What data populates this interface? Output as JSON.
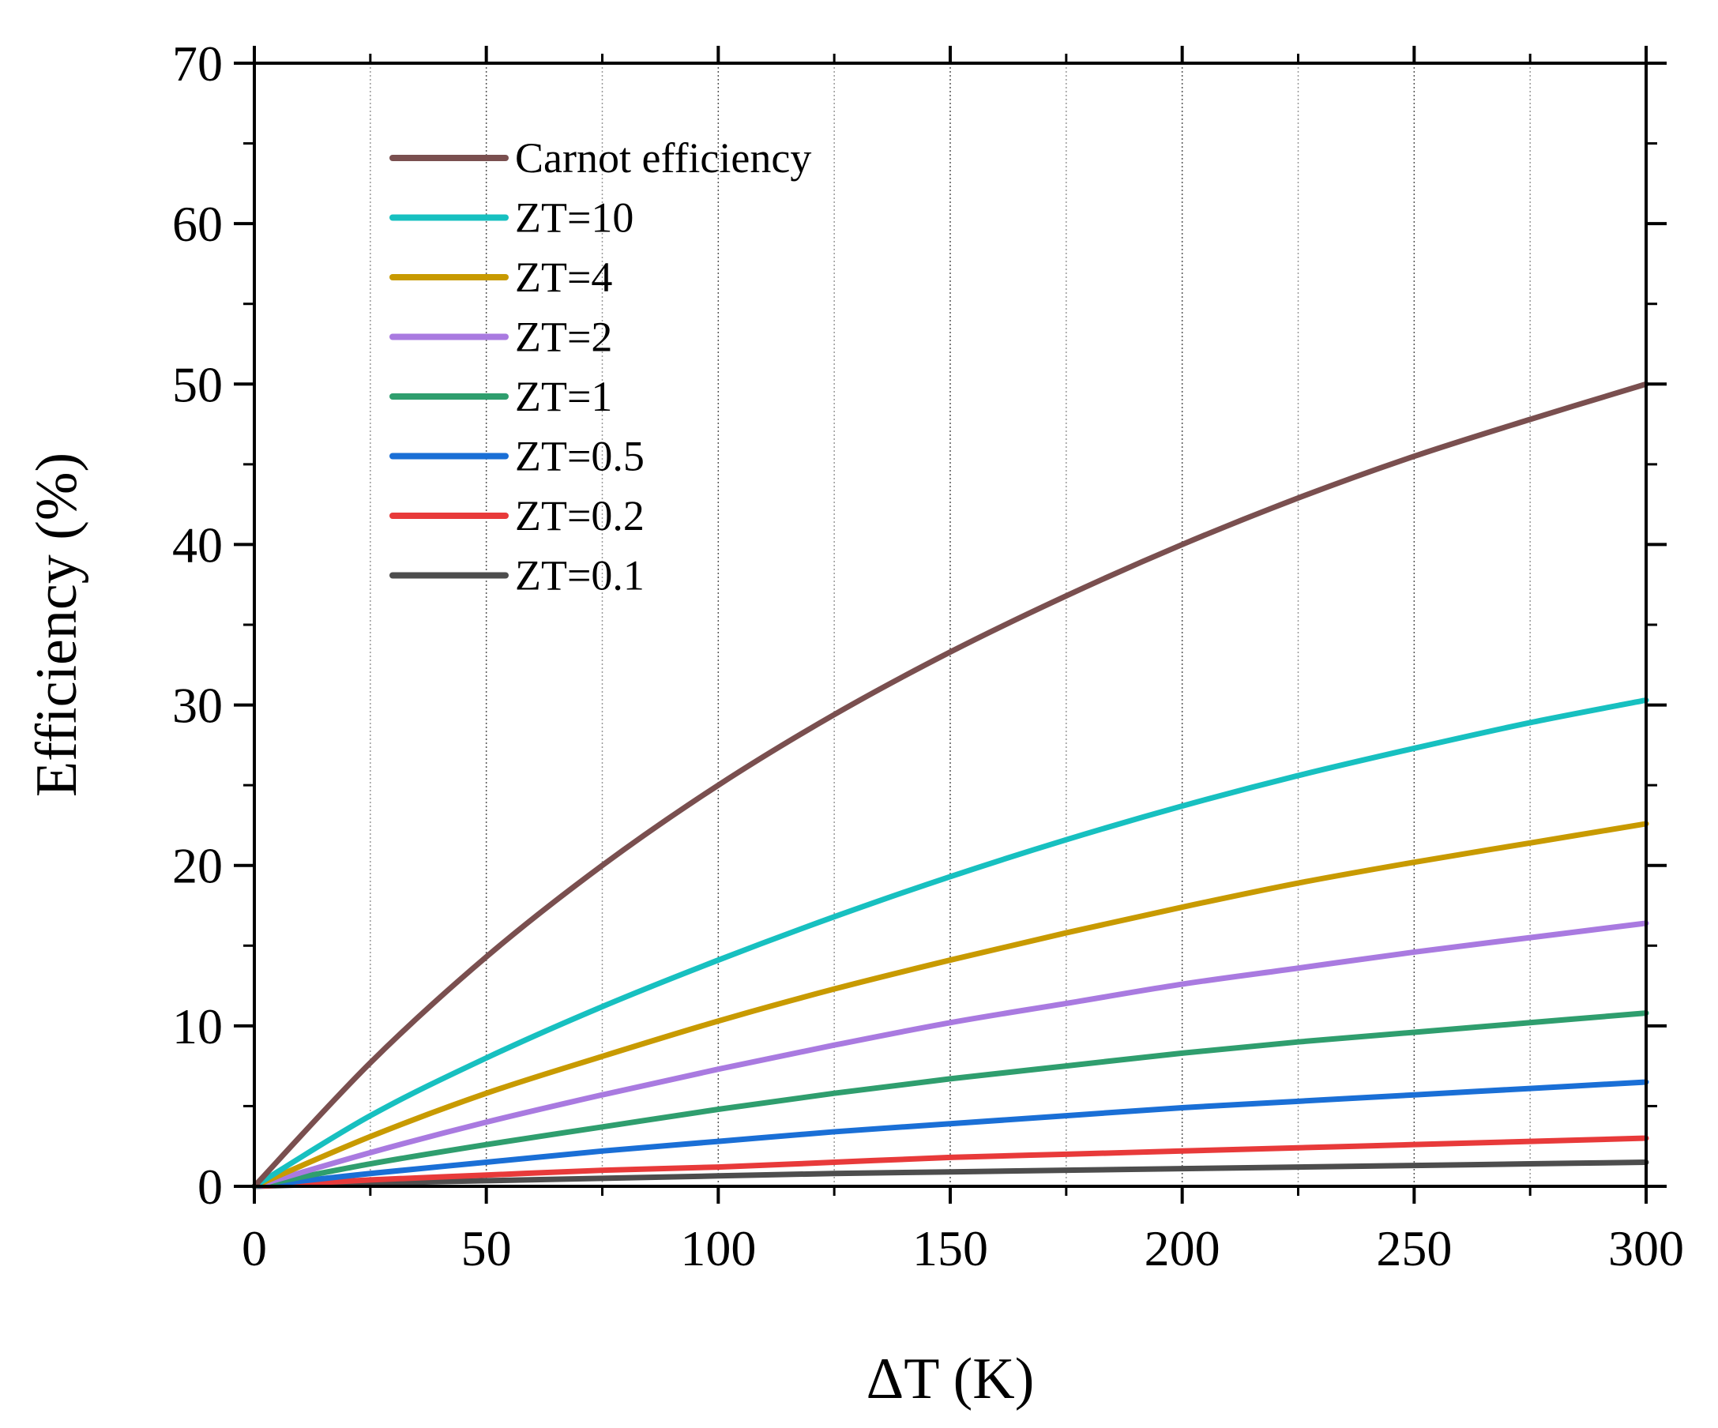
{
  "chart_data": {
    "type": "line",
    "title": "",
    "xlabel": "ΔT (K)",
    "ylabel": "Efficiency (%)",
    "xlim": [
      0,
      300
    ],
    "ylim": [
      0,
      70
    ],
    "xticks": [
      "0",
      "50",
      "100",
      "150",
      "200",
      "250",
      "300"
    ],
    "yticks": [
      "0",
      "10",
      "20",
      "30",
      "40",
      "50",
      "60",
      "70"
    ],
    "grid": "vertical dotted",
    "legend_position": "top-left",
    "x": [
      0,
      25,
      50,
      75,
      100,
      125,
      150,
      175,
      200,
      225,
      250,
      275,
      300
    ],
    "series": [
      {
        "name": "Carnot efficiency",
        "color": "#7a4f4f",
        "values": [
          0,
          7.7,
          14.3,
          20.0,
          25.0,
          29.4,
          33.3,
          36.8,
          40.0,
          42.9,
          45.5,
          47.8,
          50.0
        ]
      },
      {
        "name": "ZT=10",
        "color": "#17c0c0",
        "values": [
          0,
          4.4,
          8.0,
          11.2,
          14.1,
          16.8,
          19.3,
          21.6,
          23.7,
          25.6,
          27.3,
          28.9,
          30.3
        ]
      },
      {
        "name": "ZT=4",
        "color": "#c89a00",
        "values": [
          0,
          3.1,
          5.8,
          8.1,
          10.3,
          12.3,
          14.1,
          15.8,
          17.4,
          18.9,
          20.2,
          21.4,
          22.6
        ]
      },
      {
        "name": "ZT=2",
        "color": "#a97ae0",
        "values": [
          0,
          2.1,
          4.0,
          5.7,
          7.3,
          8.8,
          10.2,
          11.4,
          12.6,
          13.6,
          14.6,
          15.5,
          16.4
        ]
      },
      {
        "name": "ZT=1",
        "color": "#2f9e6e",
        "values": [
          0,
          1.4,
          2.6,
          3.7,
          4.8,
          5.8,
          6.7,
          7.5,
          8.3,
          9.0,
          9.6,
          10.2,
          10.8
        ]
      },
      {
        "name": "ZT=0.5",
        "color": "#1a6fd6",
        "values": [
          0,
          0.8,
          1.5,
          2.2,
          2.8,
          3.4,
          3.9,
          4.4,
          4.9,
          5.3,
          5.7,
          6.1,
          6.5
        ]
      },
      {
        "name": "ZT=0.2",
        "color": "#e83a3a",
        "values": [
          0,
          0.4,
          0.7,
          1.0,
          1.2,
          1.5,
          1.8,
          2.0,
          2.2,
          2.4,
          2.6,
          2.8,
          3.0
        ]
      },
      {
        "name": "ZT=0.1",
        "color": "#4d4d4d",
        "values": [
          0,
          0.2,
          0.35,
          0.5,
          0.65,
          0.8,
          0.9,
          1.0,
          1.1,
          1.2,
          1.3,
          1.4,
          1.5
        ]
      }
    ]
  }
}
